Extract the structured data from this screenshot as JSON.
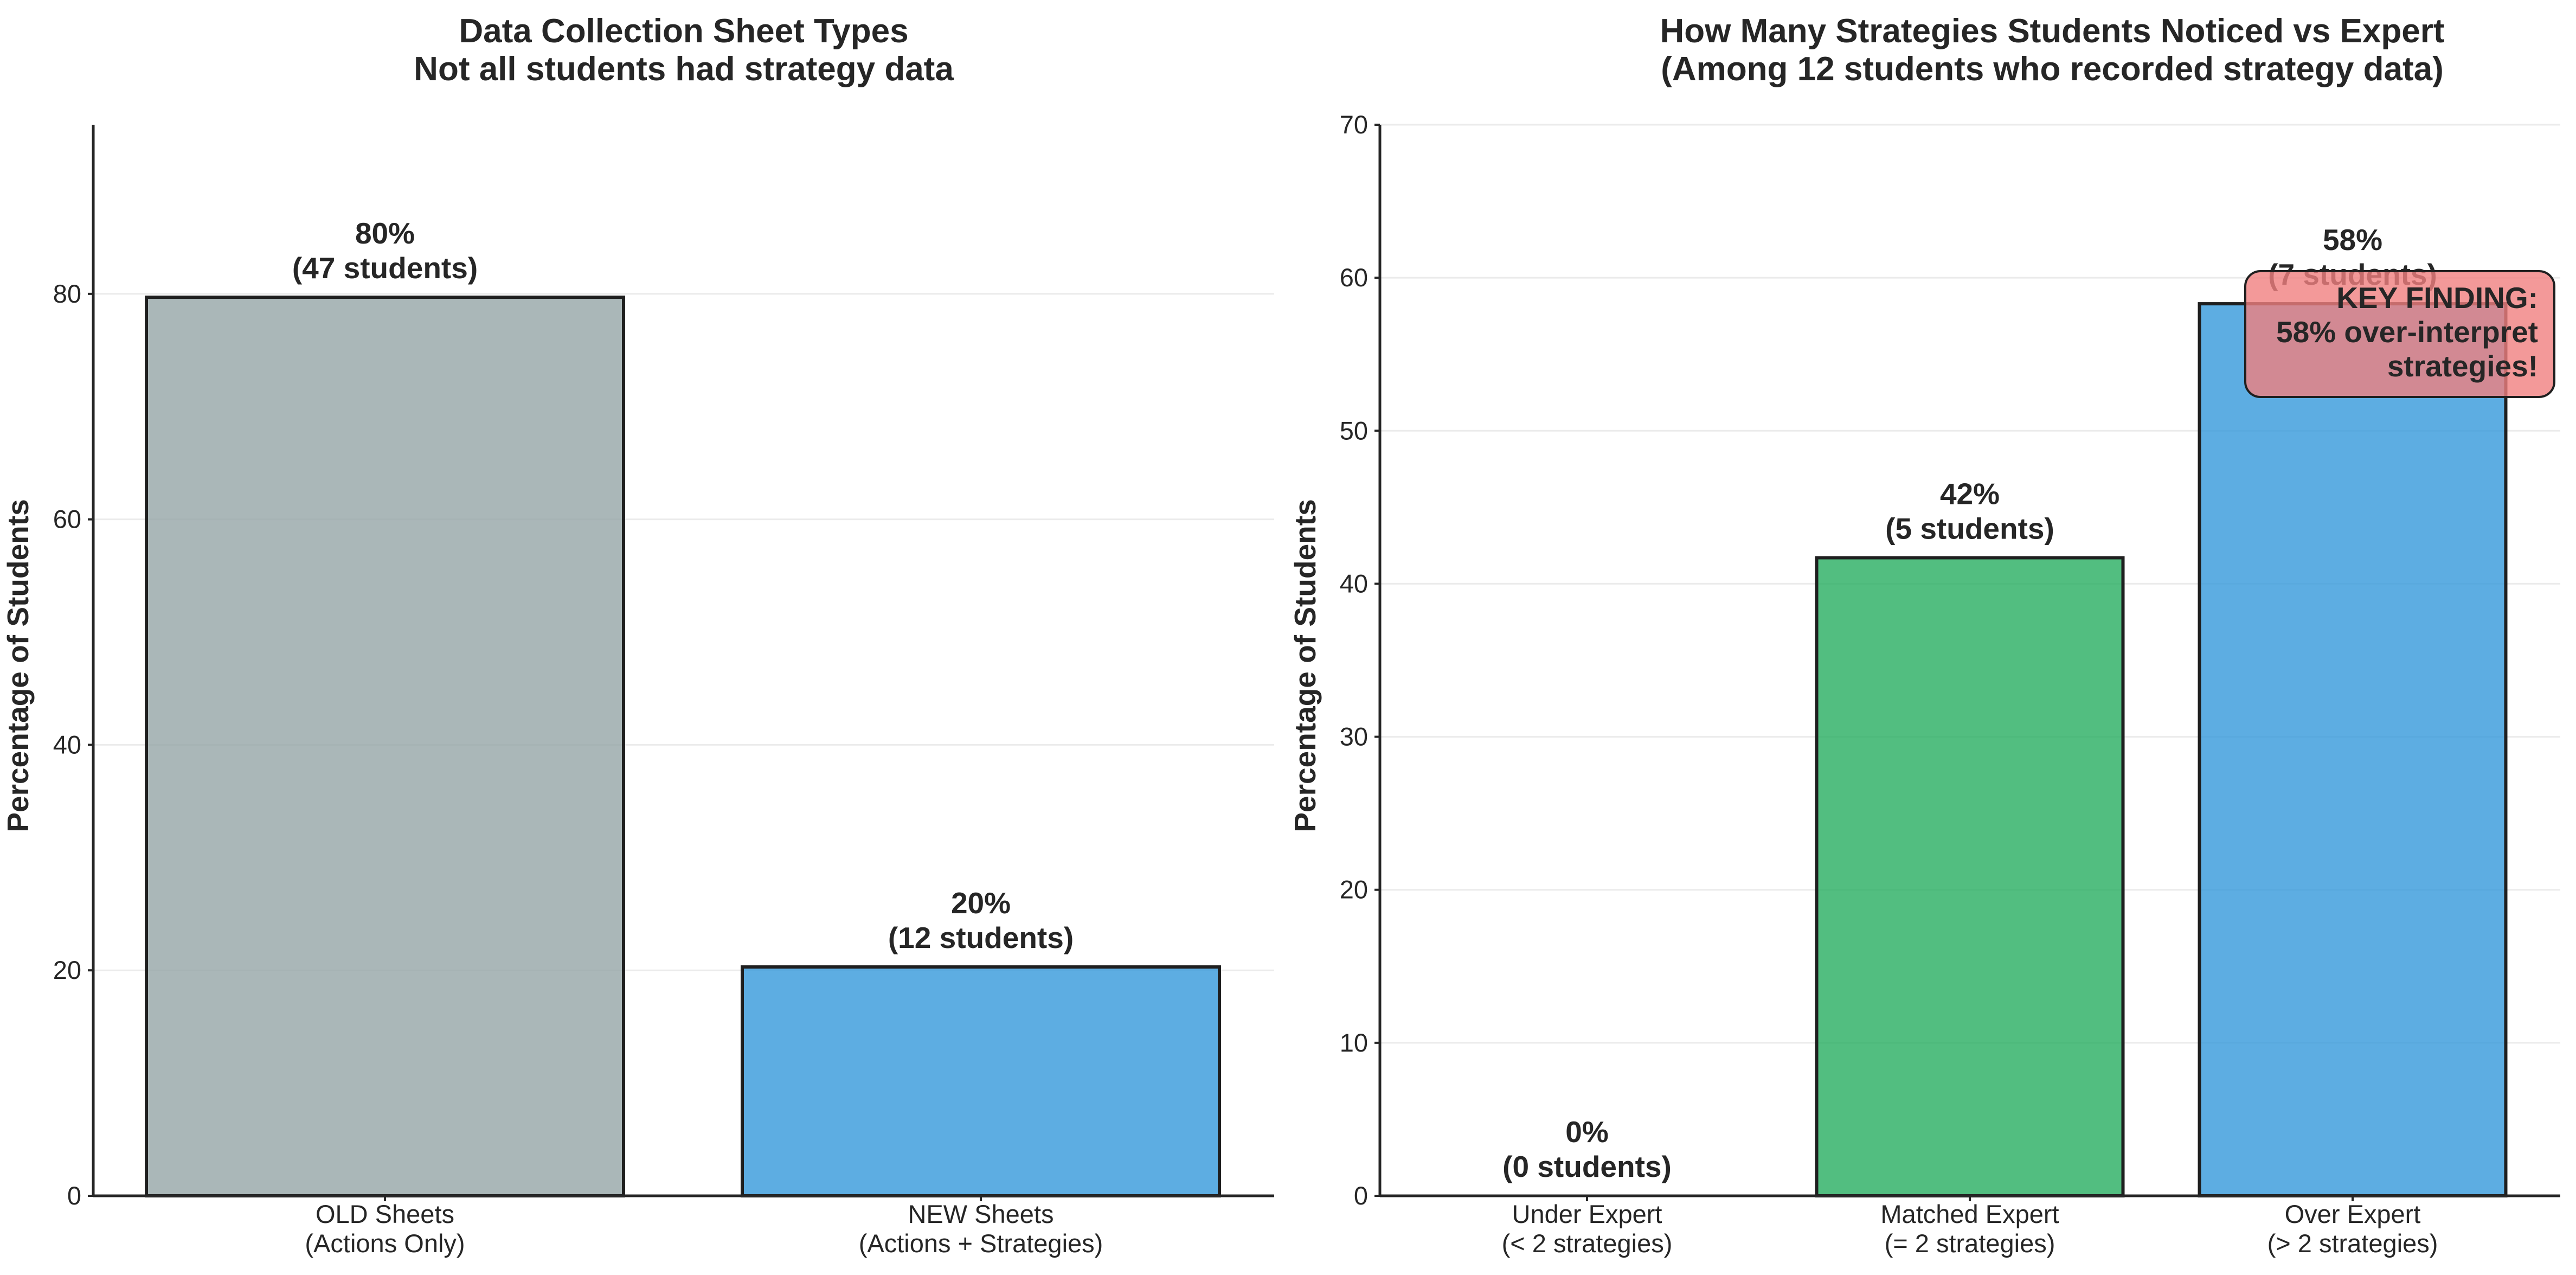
{
  "chart_data": [
    {
      "type": "bar",
      "title_lines": [
        "Data Collection Sheet Types",
        "Not all students had strategy data"
      ],
      "ylabel": "Percentage of Students",
      "ylim": [
        0,
        95
      ],
      "yticks": [
        0,
        20,
        40,
        60,
        80
      ],
      "grid": true,
      "categories": [
        {
          "lines": [
            "OLD Sheets",
            "(Actions Only)"
          ]
        },
        {
          "lines": [
            "NEW Sheets",
            "(Actions + Strategies)"
          ]
        }
      ],
      "values": [
        79.7,
        20.3
      ],
      "value_labels": [
        [
          "80%",
          "(47 students)"
        ],
        [
          "20%",
          "(12 students)"
        ]
      ],
      "colors": [
        "#95a5a6",
        "#3498db"
      ]
    },
    {
      "type": "bar",
      "title_lines": [
        "How Many Strategies Students Noticed vs Expert",
        "(Among 12 students who recorded strategy data)"
      ],
      "ylabel": "Percentage of Students",
      "ylim": [
        0,
        70
      ],
      "yticks": [
        0,
        10,
        20,
        30,
        40,
        50,
        60,
        70
      ],
      "grid": true,
      "categories": [
        {
          "lines": [
            "Under Expert",
            "(< 2 strategies)"
          ]
        },
        {
          "lines": [
            "Matched Expert",
            "(= 2 strategies)"
          ]
        },
        {
          "lines": [
            "Over Expert",
            "(> 2 strategies)"
          ]
        }
      ],
      "values": [
        0,
        41.7,
        58.3
      ],
      "value_labels": [
        [
          "0%",
          "(0 students)"
        ],
        [
          "42%",
          "(5 students)"
        ],
        [
          "58%",
          "(7 students)"
        ]
      ],
      "colors": [
        "#e74c3c",
        "#27ae60",
        "#3498db"
      ],
      "annotation": {
        "lines": [
          "KEY FINDING:",
          "58% over-interpret",
          "strategies!"
        ],
        "box_color": "#f08080"
      }
    }
  ]
}
